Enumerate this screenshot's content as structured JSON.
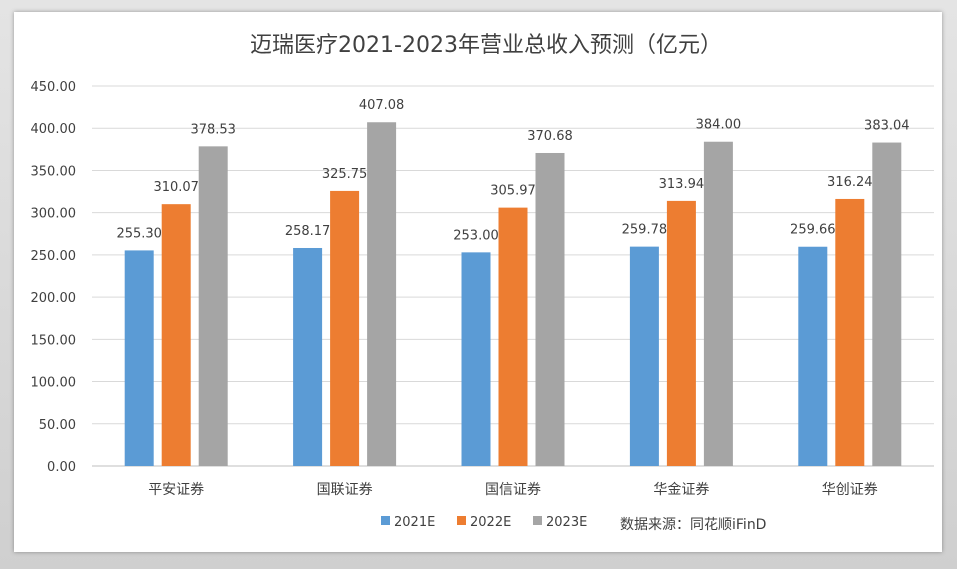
{
  "chart_data": {
    "type": "bar",
    "title": "迈瑞医疗2021-2023年营业总收入预测（亿元）",
    "categories": [
      "平安证券",
      "国联证券",
      "国信证券",
      "华金证券",
      "华创证券"
    ],
    "series": [
      {
        "name": "2021E",
        "color": "#5b9bd5",
        "values": [
          255.3,
          258.17,
          253.0,
          259.78,
          259.66
        ]
      },
      {
        "name": "2022E",
        "color": "#ed7d31",
        "values": [
          310.07,
          325.75,
          305.97,
          313.94,
          316.24
        ]
      },
      {
        "name": "2023E",
        "color": "#a5a5a5",
        "values": [
          378.53,
          407.08,
          370.68,
          384.0,
          383.04
        ]
      }
    ],
    "yticks": [
      "0.00",
      "50.00",
      "100.00",
      "150.00",
      "200.00",
      "250.00",
      "300.00",
      "350.00",
      "400.00",
      "450.00"
    ],
    "ylim": [
      0,
      450
    ],
    "grid": true,
    "legend": "bottom",
    "source_note": "数据来源：同花顺iFinD"
  }
}
